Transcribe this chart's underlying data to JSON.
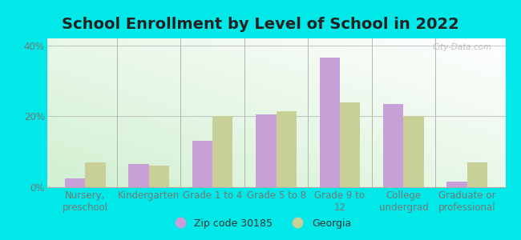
{
  "title": "School Enrollment by Level of School in 2022",
  "categories": [
    "Nursery,\npreschool",
    "Kindergarten",
    "Grade 1 to 4",
    "Grade 5 to 8",
    "Grade 9 to\n12",
    "College\nundergrad",
    "Graduate or\nprofessional"
  ],
  "zip_values": [
    2.5,
    6.5,
    13.0,
    20.5,
    36.5,
    23.5,
    1.5
  ],
  "georgia_values": [
    7.0,
    6.0,
    20.0,
    21.5,
    24.0,
    20.0,
    7.0
  ],
  "zip_color": "#c8a0d8",
  "georgia_color": "#c8d098",
  "background_outer": "#00e8e8",
  "ylim": [
    0,
    42
  ],
  "yticks": [
    0,
    20,
    40
  ],
  "ytick_labels": [
    "0%",
    "20%",
    "40%"
  ],
  "legend_zip_label": "Zip code 30185",
  "legend_georgia_label": "Georgia",
  "watermark": "City-Data.com",
  "title_fontsize": 14,
  "tick_fontsize": 8.5,
  "legend_fontsize": 9
}
